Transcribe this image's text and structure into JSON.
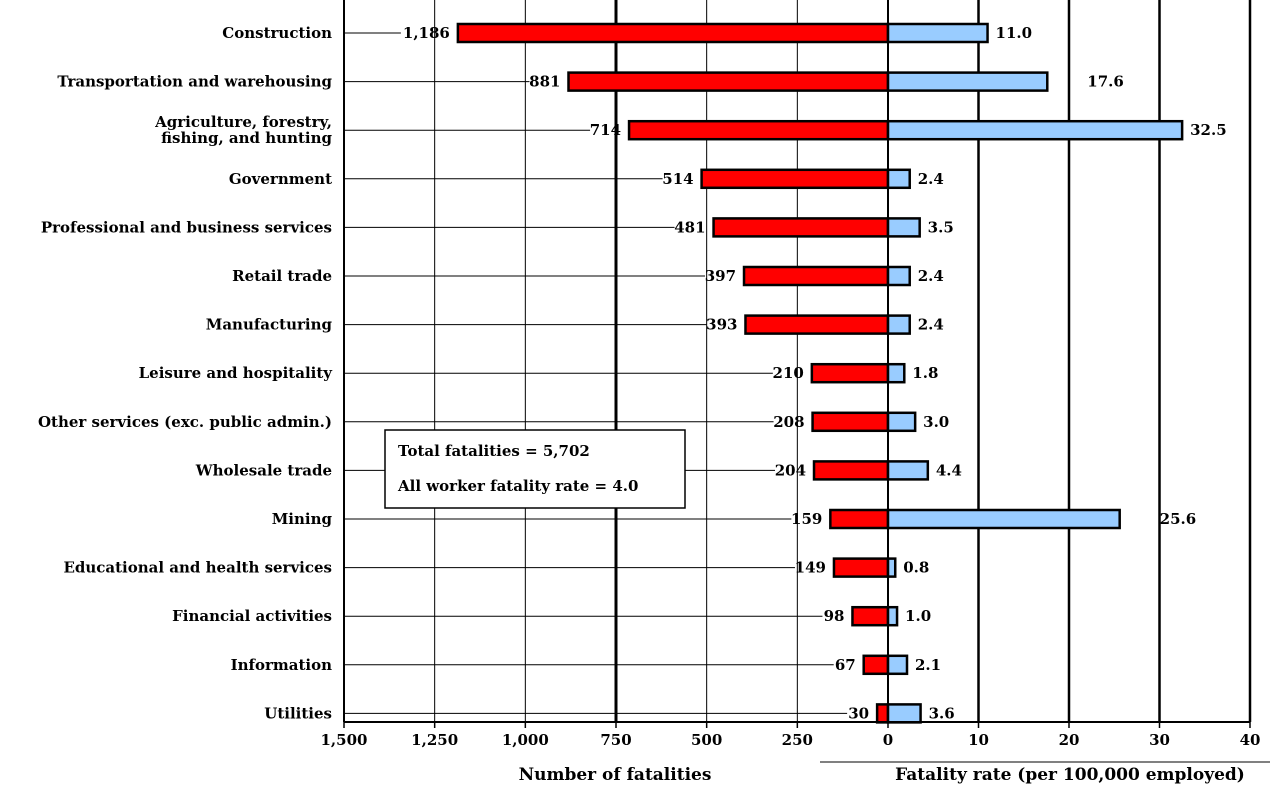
{
  "chart_data": {
    "type": "bar",
    "categories": [
      "Construction",
      "Transportation and warehousing",
      "Agriculture, forestry,\nfishing, and hunting",
      "Government",
      "Professional and business services",
      "Retail trade",
      "Manufacturing",
      "Leisure and hospitality",
      "Other services (exc. public admin.)",
      "Wholesale trade",
      "Mining",
      "Educational and health services",
      "Financial activities",
      "Information",
      "Utilities"
    ],
    "series": [
      {
        "values": [
          1186,
          881,
          714,
          514,
          481,
          397,
          393,
          210,
          208,
          204,
          159,
          149,
          98,
          67,
          30
        ],
        "labels": [
          "1,186",
          "881",
          "714",
          "514",
          "481",
          "397",
          "393",
          "210",
          "208",
          "204",
          "159",
          "149",
          "98",
          "67",
          "30"
        ],
        "color": "#ff0000"
      },
      {
        "values": [
          11.0,
          17.6,
          32.5,
          2.4,
          3.5,
          2.4,
          2.4,
          1.8,
          3.0,
          4.4,
          25.6,
          0.8,
          1.0,
          2.1,
          3.6
        ],
        "labels": [
          "11.0",
          "17.6",
          "32.5",
          "2.4",
          "3.5",
          "2.4",
          "2.4",
          "1.8",
          "3.0",
          "4.4",
          "25.6",
          "0.8",
          "1.0",
          "2.1",
          "3.6"
        ],
        "color": "#99ccff"
      }
    ],
    "left_axis": {
      "xlabel": "Number of fatalities",
      "xlim": [
        1500,
        0
      ],
      "ticks": [
        1500,
        1250,
        1000,
        750,
        500,
        250,
        0
      ],
      "tick_labels": [
        "1,500",
        "1,250",
        "1,000",
        "750",
        "500",
        "250",
        "0"
      ]
    },
    "right_axis": {
      "xlabel": "Fatality rate (per 100,000 employed)",
      "xlim": [
        0,
        40
      ],
      "ticks": [
        10,
        20,
        30,
        40
      ],
      "tick_labels": [
        "10",
        "20",
        "30",
        "40"
      ]
    },
    "grid": true,
    "annotation": [
      "Total fatalities = 5,702",
      "All worker fatality rate = 4.0"
    ]
  }
}
